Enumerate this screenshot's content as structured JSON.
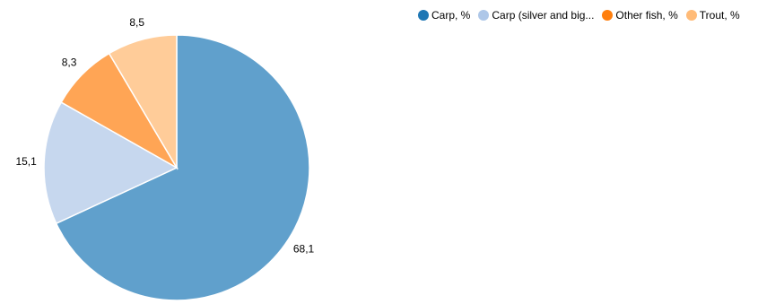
{
  "chart_data": {
    "type": "pie",
    "series": [
      {
        "name": "Carp, %",
        "legend_label": "Carp, %",
        "value": 68.1,
        "label": "68,1",
        "color": "#60a0cc",
        "legend_color": "#1f77b4"
      },
      {
        "name": "Carp (silver and bighead), %",
        "legend_label": "Carp (silver and big...",
        "value": 15.1,
        "label": "15,1",
        "color": "#c6d7ee",
        "legend_color": "#aec7e8"
      },
      {
        "name": "Other fish, %",
        "legend_label": "Other fish, %",
        "value": 8.3,
        "label": "8,3",
        "color": "#ffa555",
        "legend_color": "#ff7f0e"
      },
      {
        "name": "Trout, %",
        "legend_label": "Trout, %",
        "value": 8.5,
        "label": "8,5",
        "color": "#ffcc99",
        "legend_color": "#ffbb78"
      }
    ],
    "legend_position": "top-right"
  }
}
